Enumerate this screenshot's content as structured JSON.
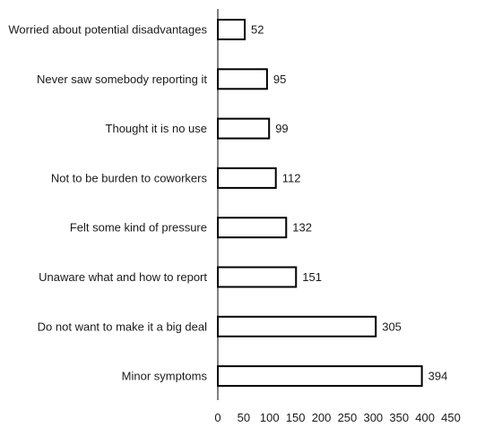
{
  "chart_data": {
    "type": "bar",
    "orientation": "horizontal",
    "categories": [
      "Worried about potential disadvantages",
      "Never saw somebody reporting it",
      "Thought it is no use",
      "Not to be burden to coworkers",
      "Felt some kind of pressure",
      "Unaware what and how to report",
      "Do not want to make it a big deal",
      "Minor symptoms"
    ],
    "values": [
      52,
      95,
      99,
      112,
      132,
      151,
      305,
      394
    ],
    "value_labels": [
      "52",
      "95",
      "99",
      "112",
      "132",
      "151",
      "305",
      "394"
    ],
    "xlim": [
      0,
      450
    ],
    "xticks": [
      "0",
      "50",
      "100",
      "150",
      "200",
      "250",
      "300",
      "350",
      "400",
      "450"
    ],
    "grid": false,
    "legend": "none",
    "bar_fill": "#ffffff",
    "bar_stroke": "#000000"
  }
}
